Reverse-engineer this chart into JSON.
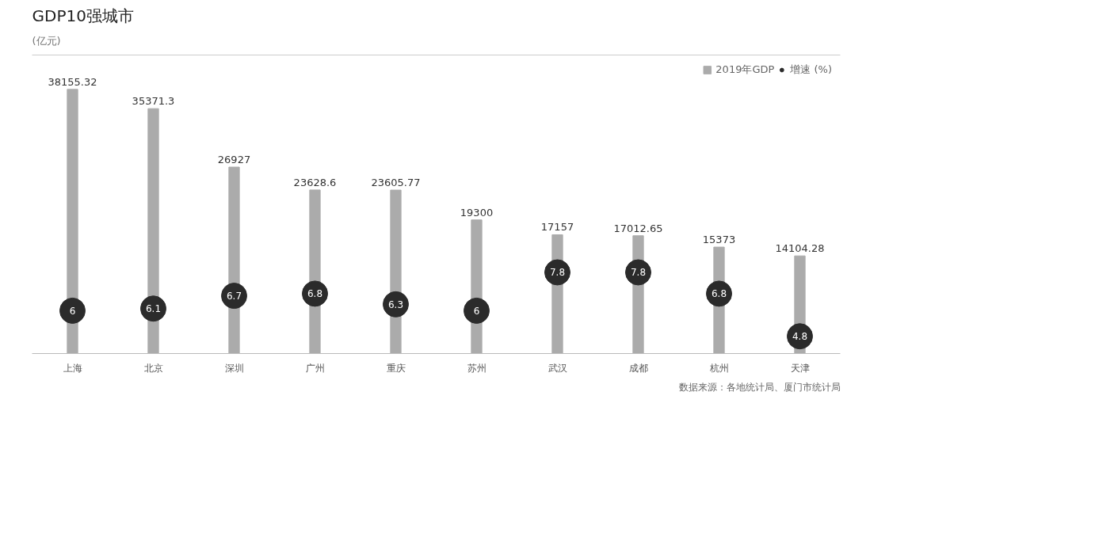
{
  "chart_data": {
    "type": "bar",
    "title": "GDP10强城市",
    "categories": [
      "上海",
      "北京",
      "深圳",
      "广州",
      "重庆",
      "苏州",
      "武汉",
      "成都",
      "杭州",
      "天津"
    ],
    "series": [
      {
        "name": "2019年GDP",
        "color": "#ababab",
        "values": [
          38155.32,
          35371.3,
          26927,
          23628.6,
          23605.77,
          19300,
          17157,
          17012.65,
          15373,
          14104.28
        ]
      },
      {
        "name": "增速 (%)",
        "type": "scatter",
        "axis": "y2",
        "color": "#2b2b2b",
        "values": [
          6,
          6.1,
          6.7,
          6.8,
          6.3,
          6,
          7.8,
          7.8,
          6.8,
          4.8
        ]
      }
    ],
    "data_labels": true,
    "tick_labels": "x",
    "legend": "top right",
    "marker": "circle",
    "annotations": [
      "(亿元)",
      "数据来源：各地统计局、厦门市统计局"
    ]
  }
}
